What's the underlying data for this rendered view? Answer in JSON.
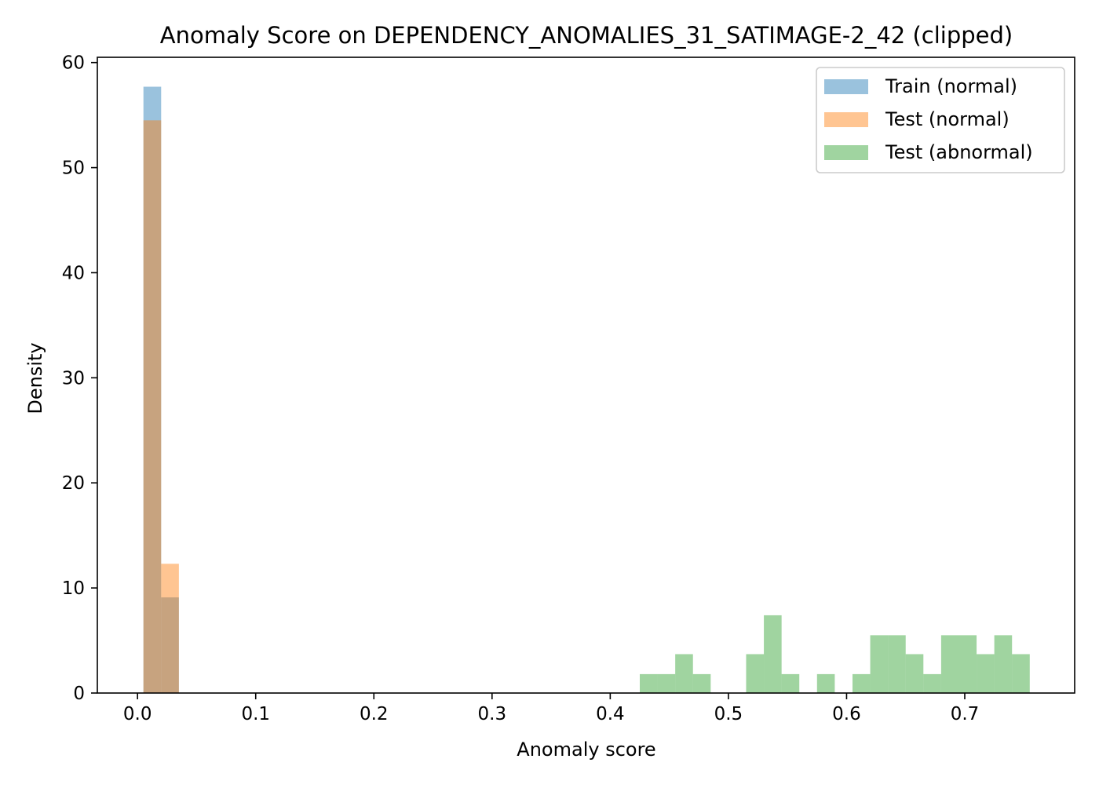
{
  "chart_data": {
    "type": "histogram",
    "title": "Anomaly Score on DEPENDENCY_ANOMALIES_31_SATIMAGE-2_42 (clipped)",
    "xlabel": "Anomaly score",
    "ylabel": "Density",
    "xlim": [
      -0.034,
      0.793
    ],
    "ylim": [
      0,
      60.5
    ],
    "xticks": [
      0.0,
      0.1,
      0.2,
      0.3,
      0.4,
      0.5,
      0.6,
      0.7
    ],
    "xtick_labels": [
      "0.0",
      "0.1",
      "0.2",
      "0.3",
      "0.4",
      "0.5",
      "0.6",
      "0.7"
    ],
    "yticks": [
      0,
      10,
      20,
      30,
      40,
      50,
      60
    ],
    "ytick_labels": [
      "0",
      "10",
      "20",
      "30",
      "40",
      "50",
      "60"
    ],
    "grid": false,
    "legend_position": "top-right",
    "bin_width": 0.015,
    "series": [
      {
        "name": "Train (normal)",
        "color": "#1f77b4",
        "opacity": 0.45,
        "bins": [
          {
            "x0": 0.005,
            "x1": 0.02,
            "density": 57.7
          },
          {
            "x0": 0.02,
            "x1": 0.035,
            "density": 9.1
          }
        ]
      },
      {
        "name": "Test (normal)",
        "color": "#ff7f0e",
        "opacity": 0.45,
        "bins": [
          {
            "x0": 0.005,
            "x1": 0.02,
            "density": 54.5
          },
          {
            "x0": 0.02,
            "x1": 0.035,
            "density": 12.3
          }
        ]
      },
      {
        "name": "Test (abnormal)",
        "color": "#2ca02c",
        "opacity": 0.45,
        "bins": [
          {
            "x0": 0.425,
            "x1": 0.44,
            "density": 1.8
          },
          {
            "x0": 0.44,
            "x1": 0.455,
            "density": 1.8
          },
          {
            "x0": 0.455,
            "x1": 0.47,
            "density": 3.7
          },
          {
            "x0": 0.47,
            "x1": 0.485,
            "density": 1.8
          },
          {
            "x0": 0.515,
            "x1": 0.53,
            "density": 3.7
          },
          {
            "x0": 0.53,
            "x1": 0.545,
            "density": 7.4
          },
          {
            "x0": 0.545,
            "x1": 0.56,
            "density": 1.8
          },
          {
            "x0": 0.575,
            "x1": 0.59,
            "density": 1.8
          },
          {
            "x0": 0.605,
            "x1": 0.62,
            "density": 1.8
          },
          {
            "x0": 0.62,
            "x1": 0.635,
            "density": 5.5
          },
          {
            "x0": 0.635,
            "x1": 0.65,
            "density": 5.5
          },
          {
            "x0": 0.65,
            "x1": 0.665,
            "density": 3.7
          },
          {
            "x0": 0.665,
            "x1": 0.68,
            "density": 1.8
          },
          {
            "x0": 0.68,
            "x1": 0.695,
            "density": 5.5
          },
          {
            "x0": 0.695,
            "x1": 0.71,
            "density": 5.5
          },
          {
            "x0": 0.71,
            "x1": 0.725,
            "density": 3.7
          },
          {
            "x0": 0.725,
            "x1": 0.74,
            "density": 5.5
          },
          {
            "x0": 0.74,
            "x1": 0.755,
            "density": 3.7
          }
        ]
      }
    ]
  }
}
